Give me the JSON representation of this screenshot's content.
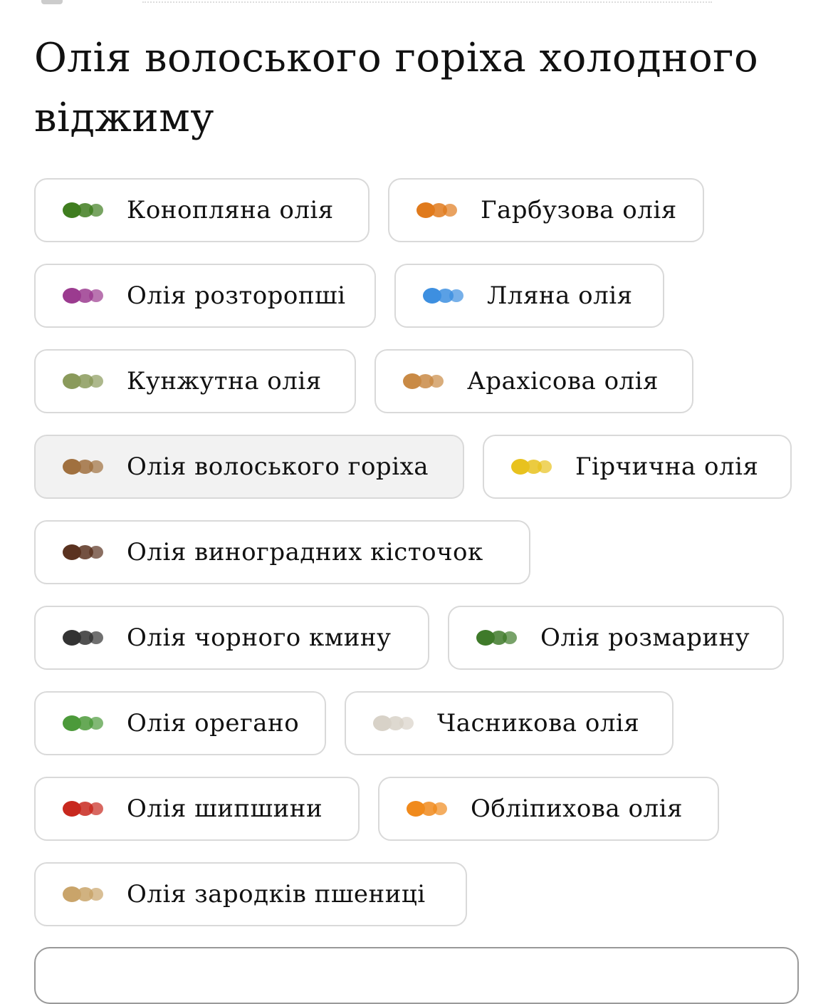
{
  "title": "Олія волоського горіха холодного віджиму",
  "selected_index": 6,
  "chips": [
    {
      "label": "Конопляна олія",
      "icon": "hemp-leaf-icon",
      "color": "#3f7d1f"
    },
    {
      "label": "Гарбузова олія",
      "icon": "pumpkin-icon",
      "color": "#e07a1c"
    },
    {
      "label": "Олія розторопші",
      "icon": "thistle-icon",
      "color": "#9b3b8f"
    },
    {
      "label": "Лляна олія",
      "icon": "flax-flower-icon",
      "color": "#3d8fe0"
    },
    {
      "label": "Кунжутна олія",
      "icon": "sesame-pod-icon",
      "color": "#8a9a5b"
    },
    {
      "label": "Арахісова олія",
      "icon": "peanut-oil-icon",
      "color": "#c98a45"
    },
    {
      "label": "Олія волоського горіха",
      "icon": "walnut-icon",
      "color": "#a0703f"
    },
    {
      "label": "Гірчична олія",
      "icon": "mustard-flower-icon",
      "color": "#e8c21e"
    },
    {
      "label": "Олія виноградних кісточок",
      "icon": "grape-seeds-icon",
      "color": "#5a3220"
    },
    {
      "label": "Олія чорного кмину",
      "icon": "black-cumin-icon",
      "color": "#333333"
    },
    {
      "label": "Олія розмарину",
      "icon": "rosemary-icon",
      "color": "#3f7a2a"
    },
    {
      "label": "Олія орегано",
      "icon": "oregano-leaf-icon",
      "color": "#4c9a3a"
    },
    {
      "label": "Часникова олія",
      "icon": "garlic-icon",
      "color": "#d8d2c8"
    },
    {
      "label": "Олія шипшини",
      "icon": "rosehip-icon",
      "color": "#c8281e"
    },
    {
      "label": "Обліпихова олія",
      "icon": "sea-buckthorn-icon",
      "color": "#f08a1c"
    },
    {
      "label": "Олія зародків пшениці",
      "icon": "wheat-germ-icon",
      "color": "#c9a46a"
    }
  ]
}
